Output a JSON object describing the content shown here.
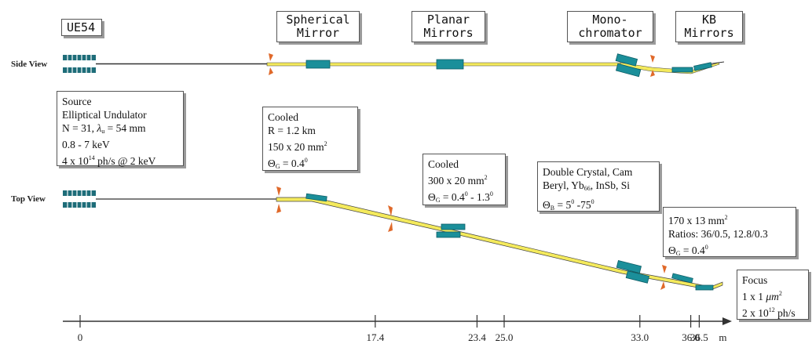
{
  "source_label": "UE54",
  "components": [
    {
      "line1": "Spherical",
      "line2": "Mirror"
    },
    {
      "line1": "Planar",
      "line2": "Mirrors"
    },
    {
      "line1": "Mono-",
      "line2": "chromator"
    },
    {
      "line1": "KB",
      "line2": "Mirrors"
    }
  ],
  "views": {
    "side": "Side View",
    "top": "Top View"
  },
  "source_info": {
    "line1": "Source",
    "line2": "Elliptical Undulator",
    "line3_pre": "N = 31, ",
    "line3_lambda": "λ",
    "line3_sub": "u",
    "line3_post": " = 54 mm",
    "line4": "0.8 - 7 keV",
    "line5_pre": "4 x 10",
    "line5_sup": "14",
    "line5_post": " ph/s @ 2 keV"
  },
  "spherical_info": {
    "line1": "Cooled",
    "line2": "R = 1.2 km",
    "line3_pre": "150 x 20 mm",
    "line3_sup": "2",
    "line4_theta": "Θ",
    "line4_sub": "G",
    "line4_eq": " = 0.4",
    "line4_sup": "0"
  },
  "planar_info": {
    "line1": "Cooled",
    "line2_pre": "300 x 20 mm",
    "line2_sup": "2",
    "line3_theta": "Θ",
    "line3_sub": "G",
    "line3_eq": " = 0.4",
    "line3_sup1": "0",
    "line3_mid": " - 1.3",
    "line3_sup2": "0"
  },
  "mono_info": {
    "line1": "Double Crystal, Cam",
    "line2_pre": "Beryl, Yb",
    "line2_sub": "66",
    "line2_post": ", InSb, Si",
    "line3_theta": "Θ",
    "line3_sub": "B",
    "line3_eq": " = 5",
    "line3_sup1": "0",
    "line3_mid": " -75",
    "line3_sup2": "0"
  },
  "kb_info": {
    "line1_pre": "170 x 13 mm",
    "line1_sup": "2",
    "line2": "Ratios: 36/0.5, 12.8/0.3",
    "line3_theta": "Θ",
    "line3_sub": "G",
    "line3_eq": " = 0.4",
    "line3_sup": "0"
  },
  "focus_info": {
    "line1": "Focus",
    "line2_pre": "1 x 1 ",
    "line2_mu": "μm",
    "line2_sup": "2",
    "line3_pre": "2 x 10",
    "line3_sup": "12",
    "line3_post": " ph/s"
  },
  "axis": {
    "ticks": [
      {
        "value": 0,
        "label": "0"
      },
      {
        "value": 17.4,
        "label": "17.4"
      },
      {
        "value": 23.4,
        "label": "23.4"
      },
      {
        "value": 25.0,
        "label": "25.0"
      },
      {
        "value": 33.0,
        "label": "33.0"
      },
      {
        "value": 36.0,
        "label": "36.0"
      },
      {
        "value": 36.5,
        "label": "36.5"
      }
    ],
    "unit": "m"
  },
  "colors": {
    "beam": "#f4ea5c",
    "optic": "#1b8f9a",
    "optic_dark": "#0d5d66",
    "aperture": "#e0692a",
    "undulator": "#1e6d79"
  }
}
